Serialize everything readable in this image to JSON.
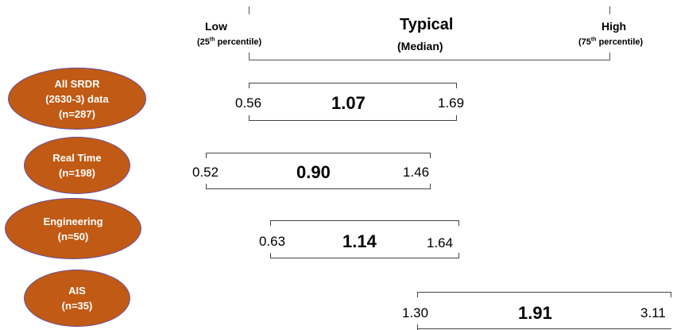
{
  "header": {
    "low_label": "Low",
    "low_sub": "(25",
    "low_sup": "th",
    "low_sub_end": " percentile)",
    "typical_label": "Typical",
    "typical_sub": "(Median)",
    "high_label": "High",
    "high_sub": "(75",
    "high_sup": "th",
    "high_sub_end": " percentile)"
  },
  "rows": [
    {
      "line1": "All SRDR",
      "line2": "(2630-3) data",
      "line3": "(n=287)",
      "low": "0.56",
      "median": "1.07",
      "high": "1.69"
    },
    {
      "line1": "Real Time",
      "line2": "(n=198)",
      "low": "0.52",
      "median": "0.90",
      "high": "1.46"
    },
    {
      "line1": "Engineering",
      "line2": "(n=50)",
      "low": "0.63",
      "median": "1.14",
      "high": "1.64"
    },
    {
      "line1": "AIS",
      "line2": "(n=35)",
      "low": "1.30",
      "median": "1.91",
      "high": "3.11"
    }
  ],
  "colors": {
    "oval_fill": "#c05a14",
    "oval_border": "#6a4fa0",
    "oval_text": "#ffffff"
  }
}
